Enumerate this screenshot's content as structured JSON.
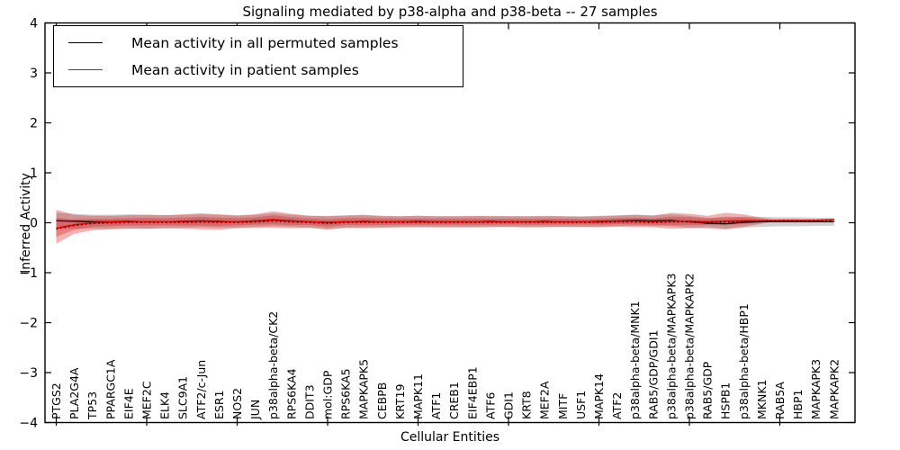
{
  "figure": {
    "title": "Signaling mediated by p38-alpha and p38-beta -- 27 samples",
    "xlabel": "Cellular Entities",
    "ylabel": "Inferred Activity",
    "legend": [
      {
        "label": "Mean activity in all permuted samples",
        "color": "#000000"
      },
      {
        "label": "Mean activity in patient samples",
        "color": "#ff0000"
      }
    ]
  },
  "chart_data": {
    "type": "line",
    "title": "Signaling mediated by p38-alpha and p38-beta -- 27 samples",
    "xlabel": "Cellular Entities",
    "ylabel": "Inferred Activity",
    "ylim": [
      -4,
      4
    ],
    "yticks": [
      4,
      3,
      2,
      1,
      0,
      -1,
      -2,
      -3,
      -4
    ],
    "xtick_every": 5,
    "grid": false,
    "legend_position": "upper left",
    "colors": {
      "permuted_line": "#000000",
      "patient_line": "#ff0000",
      "patient_band": "#dc1414",
      "permuted_band": "#9a9a9a",
      "frame": "#000000"
    },
    "categories": [
      "PTGS2",
      "PLA2G4A",
      "TP53",
      "PPARGC1A",
      "EIF4E",
      "MEF2C",
      "ELK4",
      "SLC9A1",
      "ATF2/c-Jun",
      "ESR1",
      "NOS2",
      "JUN",
      "p38alpha-beta/CK2",
      "RPS6KA4",
      "DDIT3",
      "mol:GDP",
      "RPS6KA5",
      "MAPKAPK5",
      "CEBPB",
      "KRT19",
      "MAPK11",
      "ATF1",
      "CREB1",
      "EIF4EBP1",
      "ATF6",
      "GDI1",
      "KRT8",
      "MEF2A",
      "MITF",
      "USF1",
      "MAPK14",
      "ATF2",
      "p38alpha-beta/MNK1",
      "RAB5/GDP/GDI1",
      "p38alpha-beta/MAPKAPK3",
      "p38alpha-beta/MAPKAPK2",
      "RAB5/GDP",
      "HSPB1",
      "p38alpha-beta/HBP1",
      "MKNK1",
      "RAB5A",
      "HBP1",
      "MAPKAPK3",
      "MAPKAPK2"
    ],
    "series": [
      {
        "name": "Mean activity in all permuted samples",
        "color": "#000000",
        "style": "solid",
        "values": [
          0.04,
          0.03,
          0.02,
          0.02,
          0.03,
          0.02,
          0.02,
          0.03,
          0.04,
          0.03,
          0.02,
          0.04,
          0.06,
          0.04,
          0.02,
          0.01,
          0.02,
          0.03,
          0.02,
          0.02,
          0.03,
          0.02,
          0.02,
          0.02,
          0.03,
          0.02,
          0.02,
          0.03,
          0.02,
          0.02,
          0.03,
          0.04,
          0.05,
          0.04,
          0.05,
          0.02,
          -0.01,
          -0.02,
          0.01,
          0.02,
          0.02,
          0.02,
          0.02,
          0.02
        ]
      },
      {
        "name": "Mean activity in patient samples",
        "color": "#ff0000",
        "style": "solid",
        "dotted_black_overlay": true,
        "values": [
          -0.11,
          -0.04,
          0.0,
          0.01,
          0.02,
          0.02,
          0.02,
          0.02,
          0.03,
          0.02,
          0.02,
          0.03,
          0.05,
          0.03,
          0.02,
          0.0,
          0.02,
          0.02,
          0.02,
          0.02,
          0.02,
          0.02,
          0.02,
          0.02,
          0.02,
          0.02,
          0.02,
          0.02,
          0.02,
          0.02,
          0.02,
          0.03,
          0.03,
          0.02,
          0.03,
          0.03,
          0.02,
          0.03,
          0.04,
          0.04,
          0.05,
          0.05,
          0.05,
          0.06
        ]
      }
    ],
    "bands": [
      {
        "name": "permuted-samples-std-band",
        "color": "#9a9a9a",
        "opacity": 0.45,
        "upper": [
          0.2,
          0.18,
          0.16,
          0.16,
          0.17,
          0.16,
          0.15,
          0.16,
          0.17,
          0.16,
          0.14,
          0.16,
          0.19,
          0.16,
          0.14,
          0.14,
          0.14,
          0.15,
          0.13,
          0.13,
          0.14,
          0.13,
          0.13,
          0.13,
          0.14,
          0.13,
          0.13,
          0.14,
          0.13,
          0.13,
          0.14,
          0.15,
          0.16,
          0.15,
          0.17,
          0.14,
          0.1,
          0.1,
          0.12,
          0.12,
          0.11,
          0.11,
          0.1,
          0.1
        ],
        "lower": [
          -0.12,
          -0.12,
          -0.12,
          -0.12,
          -0.11,
          -0.12,
          -0.11,
          -0.1,
          -0.09,
          -0.1,
          -0.1,
          -0.08,
          -0.07,
          -0.08,
          -0.1,
          -0.12,
          -0.1,
          -0.09,
          -0.09,
          -0.09,
          -0.08,
          -0.09,
          -0.09,
          -0.09,
          -0.08,
          -0.09,
          -0.09,
          -0.08,
          -0.09,
          -0.09,
          -0.08,
          -0.07,
          -0.06,
          -0.07,
          -0.07,
          -0.1,
          -0.12,
          -0.14,
          -0.1,
          -0.08,
          -0.07,
          -0.07,
          -0.06,
          -0.06
        ]
      },
      {
        "name": "patient-samples-std-band",
        "color": "#dc1414",
        "opacity": 0.33,
        "inner_band_factor": 0.55,
        "upper": [
          0.26,
          0.16,
          0.14,
          0.14,
          0.15,
          0.16,
          0.15,
          0.17,
          0.19,
          0.17,
          0.15,
          0.17,
          0.23,
          0.18,
          0.14,
          0.13,
          0.15,
          0.16,
          0.14,
          0.13,
          0.14,
          0.13,
          0.13,
          0.14,
          0.13,
          0.13,
          0.13,
          0.13,
          0.13,
          0.12,
          0.13,
          0.14,
          0.16,
          0.14,
          0.2,
          0.18,
          0.14,
          0.2,
          0.17,
          0.1,
          0.05,
          0.05,
          0.05,
          0.06
        ],
        "lower": [
          -0.42,
          -0.22,
          -0.15,
          -0.13,
          -0.12,
          -0.12,
          -0.11,
          -0.12,
          -0.13,
          -0.14,
          -0.11,
          -0.1,
          -0.1,
          -0.11,
          -0.1,
          -0.14,
          -0.1,
          -0.11,
          -0.1,
          -0.09,
          -0.09,
          -0.09,
          -0.09,
          -0.09,
          -0.09,
          -0.08,
          -0.09,
          -0.09,
          -0.08,
          -0.08,
          -0.09,
          -0.08,
          -0.09,
          -0.09,
          -0.12,
          -0.11,
          -0.09,
          -0.12,
          -0.08,
          -0.02,
          0.05,
          0.05,
          0.05,
          0.06
        ]
      }
    ]
  }
}
